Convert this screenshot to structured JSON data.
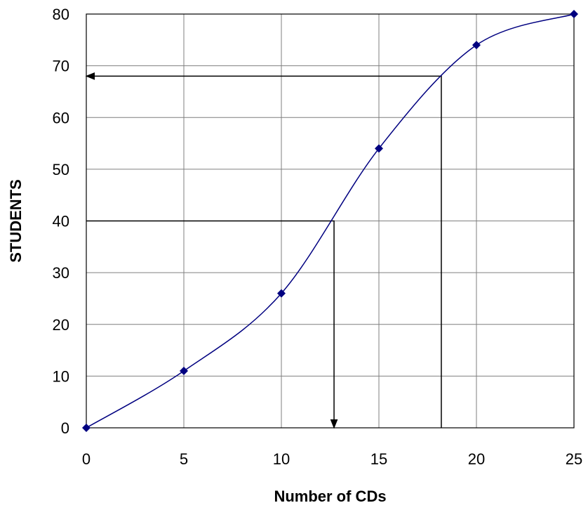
{
  "chart_data": {
    "type": "line",
    "title": "",
    "xlabel": "Number of CDs",
    "ylabel": "STUDENTS",
    "xlim": [
      0,
      25
    ],
    "ylim": [
      0,
      80
    ],
    "x_ticks": [
      0,
      5,
      10,
      15,
      20,
      25
    ],
    "y_ticks": [
      0,
      10,
      20,
      30,
      40,
      50,
      60,
      70,
      80
    ],
    "x_tick_labels": [
      "0",
      "5",
      "10",
      "15",
      "20",
      "25"
    ],
    "y_tick_labels": [
      "0",
      "10",
      "20",
      "30",
      "40",
      "50",
      "60",
      "70",
      "80"
    ],
    "grid": true,
    "legend": "none",
    "series": [
      {
        "x": [
          0,
          5,
          10,
          15,
          20,
          25
        ],
        "y": [
          0,
          11,
          26,
          54,
          74,
          80
        ],
        "color": "#000080",
        "marker": "diamond",
        "smooth": true
      }
    ],
    "annotations": [
      {
        "type": "guide",
        "from_y": 40,
        "to_x": 12.7,
        "arrow_end": "x-axis"
      },
      {
        "type": "guide",
        "from_x": 18.2,
        "to_y": 68,
        "arrow_end": "y-axis"
      }
    ]
  }
}
